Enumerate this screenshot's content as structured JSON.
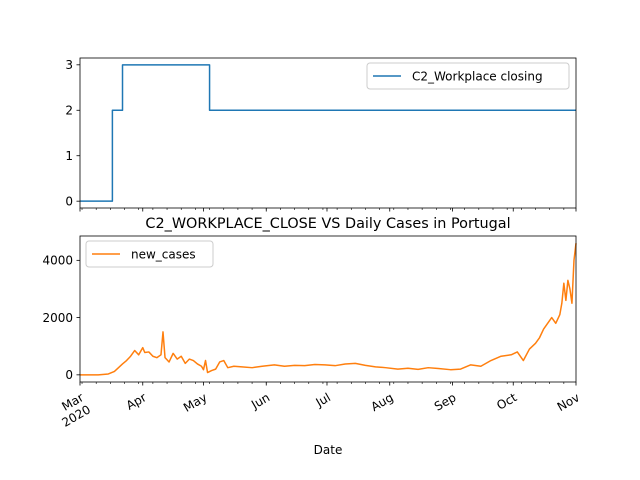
{
  "chart_data": [
    {
      "type": "line",
      "title": "",
      "xlabel": "",
      "ylabel": "",
      "ylim": [
        -0.15,
        3.15
      ],
      "yticks": [
        0,
        1,
        2,
        3
      ],
      "x_start": "2020-03-01",
      "x_end": "2020-11-01",
      "legend": "top-right",
      "grid": false,
      "series": [
        {
          "name": "C2_Workplace closing",
          "color": "#1f77b4",
          "step": true,
          "x": [
            "2020-03-01",
            "2020-03-17",
            "2020-03-20",
            "2020-03-22",
            "2020-05-04",
            "2020-11-01"
          ],
          "values": [
            0,
            2,
            2,
            3,
            2,
            2
          ]
        }
      ]
    },
    {
      "type": "line",
      "title": "C2_WORKPLACE_CLOSE VS Daily Cases in Portugal",
      "xlabel": "Date",
      "ylabel": "",
      "ylim": [
        -250,
        4850
      ],
      "yticks": [
        0,
        2000,
        4000
      ],
      "x_start": "2020-03-01",
      "x_end": "2020-11-01",
      "xticks": [
        {
          "date": "2020-03-01",
          "label": "Mar",
          "label2": "2020"
        },
        {
          "date": "2020-04-01",
          "label": "Apr"
        },
        {
          "date": "2020-05-01",
          "label": "May"
        },
        {
          "date": "2020-06-01",
          "label": "Jun"
        },
        {
          "date": "2020-07-01",
          "label": "Jul"
        },
        {
          "date": "2020-08-01",
          "label": "Aug"
        },
        {
          "date": "2020-09-01",
          "label": "Sep"
        },
        {
          "date": "2020-10-01",
          "label": "Oct"
        },
        {
          "date": "2020-11-01",
          "label": "Nov"
        }
      ],
      "legend": "top-left",
      "grid": false,
      "series": [
        {
          "name": "new_cases",
          "color": "#ff7f0e",
          "x": [
            "2020-03-01",
            "2020-03-10",
            "2020-03-15",
            "2020-03-18",
            "2020-03-20",
            "2020-03-22",
            "2020-03-24",
            "2020-03-26",
            "2020-03-28",
            "2020-03-30",
            "2020-04-01",
            "2020-04-02",
            "2020-04-04",
            "2020-04-06",
            "2020-04-08",
            "2020-04-10",
            "2020-04-11",
            "2020-04-12",
            "2020-04-14",
            "2020-04-16",
            "2020-04-18",
            "2020-04-20",
            "2020-04-22",
            "2020-04-24",
            "2020-04-26",
            "2020-04-28",
            "2020-04-30",
            "2020-05-01",
            "2020-05-02",
            "2020-05-03",
            "2020-05-05",
            "2020-05-07",
            "2020-05-09",
            "2020-05-11",
            "2020-05-13",
            "2020-05-16",
            "2020-05-20",
            "2020-05-25",
            "2020-05-30",
            "2020-06-05",
            "2020-06-10",
            "2020-06-15",
            "2020-06-20",
            "2020-06-25",
            "2020-06-30",
            "2020-07-05",
            "2020-07-10",
            "2020-07-15",
            "2020-07-20",
            "2020-07-25",
            "2020-07-30",
            "2020-08-05",
            "2020-08-10",
            "2020-08-15",
            "2020-08-20",
            "2020-08-25",
            "2020-08-31",
            "2020-09-05",
            "2020-09-10",
            "2020-09-15",
            "2020-09-20",
            "2020-09-25",
            "2020-09-30",
            "2020-10-03",
            "2020-10-06",
            "2020-10-09",
            "2020-10-12",
            "2020-10-14",
            "2020-10-16",
            "2020-10-18",
            "2020-10-20",
            "2020-10-22",
            "2020-10-24",
            "2020-10-25",
            "2020-10-26",
            "2020-10-27",
            "2020-10-28",
            "2020-10-29",
            "2020-10-30",
            "2020-10-31",
            "2020-11-01"
          ],
          "values": [
            0,
            0,
            30,
            120,
            250,
            380,
            500,
            650,
            850,
            700,
            950,
            780,
            800,
            650,
            600,
            700,
            1500,
            600,
            450,
            750,
            550,
            650,
            400,
            550,
            500,
            380,
            300,
            180,
            500,
            80,
            150,
            200,
            450,
            500,
            250,
            300,
            280,
            250,
            300,
            350,
            300,
            330,
            320,
            360,
            350,
            320,
            380,
            400,
            330,
            280,
            250,
            200,
            230,
            190,
            250,
            220,
            180,
            200,
            350,
            300,
            500,
            650,
            700,
            800,
            500,
            900,
            1100,
            1300,
            1600,
            1800,
            2000,
            1800,
            2100,
            2500,
            3200,
            2600,
            3300,
            3000,
            2500,
            4000,
            4600
          ]
        }
      ]
    }
  ]
}
